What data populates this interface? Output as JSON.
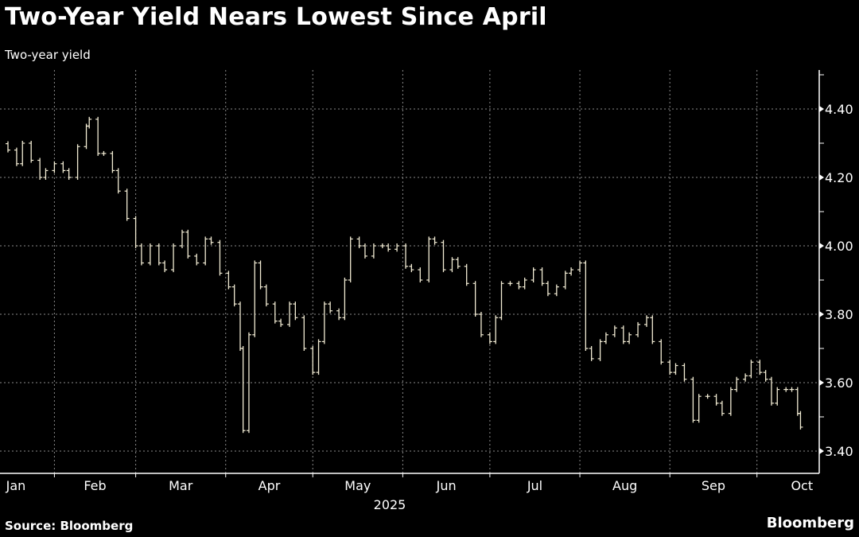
{
  "header": {
    "title": "Two-Year Yield Nears Lowest Since April",
    "legend": "Two-year yield",
    "source": "Source: Bloomberg",
    "brand": "Bloomberg"
  },
  "colors": {
    "background": "#000000",
    "series": "#f2ecd4",
    "grid": "#8a8a8a",
    "axis": "#ffffff"
  },
  "chart_data": {
    "type": "line",
    "title": "Two-Year Yield Nears Lowest Since April",
    "series_name": "Two-year yield",
    "x_unit": "day of year 2025",
    "xlabel": "2025",
    "ylabel": "",
    "ylim": [
      3.35,
      4.52
    ],
    "y_ticks": [
      4.4,
      4.2,
      4.0,
      3.8,
      3.6,
      3.4
    ],
    "y_tick_labels": [
      "4.40",
      "4.20",
      "4.00",
      "3.80",
      "3.60",
      "3.40"
    ],
    "x_ticks": [
      {
        "label": "Jan",
        "start": 1
      },
      {
        "label": "Feb",
        "start": 32
      },
      {
        "label": "Mar",
        "start": 60
      },
      {
        "label": "Apr",
        "start": 91
      },
      {
        "label": "May",
        "start": 121
      },
      {
        "label": "Jun",
        "start": 152
      },
      {
        "label": "Jul",
        "start": 182
      },
      {
        "label": "Aug",
        "start": 213
      },
      {
        "label": "Sep",
        "start": 244
      },
      {
        "label": "Oct",
        "start": 274
      }
    ],
    "grid": true,
    "legend_position": "top-left",
    "points": [
      [
        16,
        4.28
      ],
      [
        19,
        4.24
      ],
      [
        21,
        4.3
      ],
      [
        24,
        4.25
      ],
      [
        27,
        4.2
      ],
      [
        29,
        4.22
      ],
      [
        32,
        4.24
      ],
      [
        35,
        4.22
      ],
      [
        37,
        4.2
      ],
      [
        40,
        4.29
      ],
      [
        43,
        4.35
      ],
      [
        44,
        4.37
      ],
      [
        47,
        4.27
      ],
      [
        49,
        4.27
      ],
      [
        52,
        4.22
      ],
      [
        54,
        4.16
      ],
      [
        57,
        4.08
      ],
      [
        60,
        4.0
      ],
      [
        62,
        3.95
      ],
      [
        65,
        4.0
      ],
      [
        68,
        3.95
      ],
      [
        70,
        3.93
      ],
      [
        73,
        4.0
      ],
      [
        76,
        4.04
      ],
      [
        78,
        3.97
      ],
      [
        81,
        3.95
      ],
      [
        84,
        4.02
      ],
      [
        86,
        4.01
      ],
      [
        89,
        3.92
      ],
      [
        92,
        3.88
      ],
      [
        94,
        3.83
      ],
      [
        96,
        3.7
      ],
      [
        97,
        3.46
      ],
      [
        99,
        3.74
      ],
      [
        101,
        3.95
      ],
      [
        103,
        3.88
      ],
      [
        105,
        3.83
      ],
      [
        108,
        3.78
      ],
      [
        110,
        3.77
      ],
      [
        113,
        3.83
      ],
      [
        115,
        3.79
      ],
      [
        118,
        3.7
      ],
      [
        121,
        3.63
      ],
      [
        123,
        3.72
      ],
      [
        125,
        3.83
      ],
      [
        127,
        3.81
      ],
      [
        130,
        3.79
      ],
      [
        132,
        3.9
      ],
      [
        134,
        4.02
      ],
      [
        137,
        4.0
      ],
      [
        139,
        3.97
      ],
      [
        142,
        4.0
      ],
      [
        145,
        4.0
      ],
      [
        147,
        3.99
      ],
      [
        150,
        4.0
      ],
      [
        153,
        3.94
      ],
      [
        155,
        3.93
      ],
      [
        158,
        3.9
      ],
      [
        161,
        4.02
      ],
      [
        163,
        4.01
      ],
      [
        166,
        3.93
      ],
      [
        169,
        3.96
      ],
      [
        171,
        3.94
      ],
      [
        174,
        3.89
      ],
      [
        177,
        3.8
      ],
      [
        179,
        3.74
      ],
      [
        182,
        3.72
      ],
      [
        184,
        3.79
      ],
      [
        186,
        3.89
      ],
      [
        189,
        3.89
      ],
      [
        192,
        3.88
      ],
      [
        194,
        3.9
      ],
      [
        197,
        3.93
      ],
      [
        200,
        3.89
      ],
      [
        202,
        3.86
      ],
      [
        205,
        3.88
      ],
      [
        208,
        3.92
      ],
      [
        210,
        3.93
      ],
      [
        213,
        3.95
      ],
      [
        215,
        3.7
      ],
      [
        217,
        3.67
      ],
      [
        220,
        3.72
      ],
      [
        222,
        3.74
      ],
      [
        225,
        3.76
      ],
      [
        228,
        3.72
      ],
      [
        230,
        3.74
      ],
      [
        233,
        3.77
      ],
      [
        236,
        3.79
      ],
      [
        238,
        3.72
      ],
      [
        241,
        3.66
      ],
      [
        244,
        3.63
      ],
      [
        246,
        3.65
      ],
      [
        249,
        3.61
      ],
      [
        252,
        3.49
      ],
      [
        254,
        3.56
      ],
      [
        257,
        3.56
      ],
      [
        260,
        3.54
      ],
      [
        262,
        3.51
      ],
      [
        265,
        3.58
      ],
      [
        267,
        3.61
      ],
      [
        270,
        3.62
      ],
      [
        272,
        3.66
      ],
      [
        275,
        3.63
      ],
      [
        277,
        3.61
      ],
      [
        279,
        3.54
      ],
      [
        281,
        3.58
      ],
      [
        284,
        3.58
      ],
      [
        286,
        3.58
      ],
      [
        288,
        3.51
      ],
      [
        289,
        3.47
      ]
    ]
  }
}
